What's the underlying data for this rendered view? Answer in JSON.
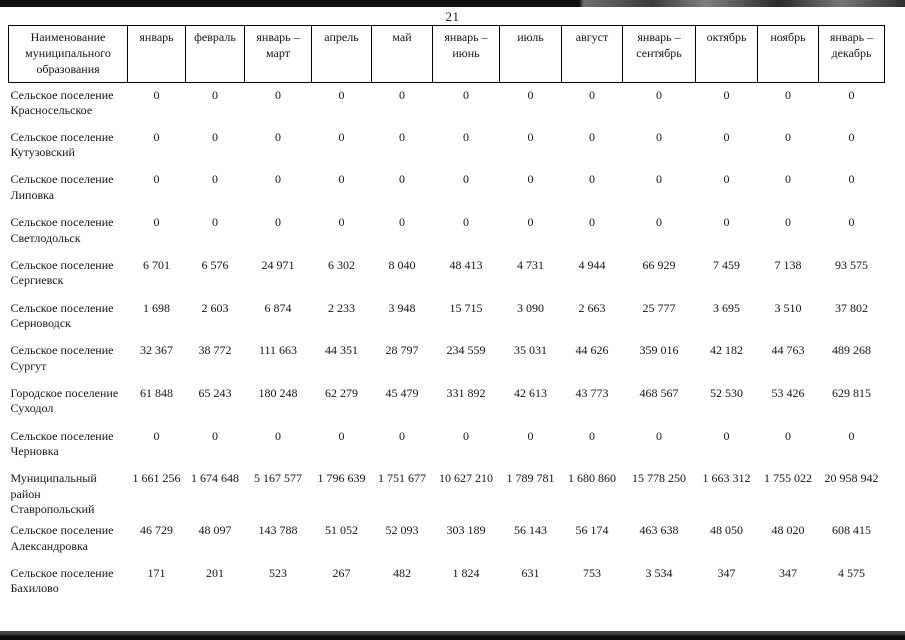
{
  "page": {
    "number": "21"
  },
  "table": {
    "name_header": "Наименование муниципального образования",
    "columns": [
      "январь",
      "февраль",
      "январь – март",
      "апрель",
      "май",
      "январь – июнь",
      "июль",
      "август",
      "январь – сентябрь",
      "октябрь",
      "ноябрь",
      "январь – декабрь"
    ],
    "rows": [
      {
        "name": "Сельское поселение Красносельское",
        "values": [
          "0",
          "0",
          "0",
          "0",
          "0",
          "0",
          "0",
          "0",
          "0",
          "0",
          "0",
          "0"
        ]
      },
      {
        "name": "Сельское поселение Кутузовский",
        "values": [
          "0",
          "0",
          "0",
          "0",
          "0",
          "0",
          "0",
          "0",
          "0",
          "0",
          "0",
          "0"
        ]
      },
      {
        "name": "Сельское поселение Липовка",
        "values": [
          "0",
          "0",
          "0",
          "0",
          "0",
          "0",
          "0",
          "0",
          "0",
          "0",
          "0",
          "0"
        ]
      },
      {
        "name": "Сельское поселение Светлодольск",
        "values": [
          "0",
          "0",
          "0",
          "0",
          "0",
          "0",
          "0",
          "0",
          "0",
          "0",
          "0",
          "0"
        ]
      },
      {
        "name": "Сельское поселение Сергиевск",
        "values": [
          "6 701",
          "6 576",
          "24 971",
          "6 302",
          "8 040",
          "48 413",
          "4 731",
          "4 944",
          "66 929",
          "7 459",
          "7 138",
          "93 575"
        ]
      },
      {
        "name": "Сельское поселение Серноводск",
        "values": [
          "1 698",
          "2 603",
          "6 874",
          "2 233",
          "3 948",
          "15 715",
          "3 090",
          "2 663",
          "25 777",
          "3 695",
          "3 510",
          "37 802"
        ]
      },
      {
        "name": "Сельское поселение Сургут",
        "values": [
          "32 367",
          "38 772",
          "111 663",
          "44 351",
          "28 797",
          "234 559",
          "35 031",
          "44 626",
          "359 016",
          "42 182",
          "44 763",
          "489 268"
        ]
      },
      {
        "name": "Городское поселение Суходол",
        "values": [
          "61 848",
          "65 243",
          "180 248",
          "62 279",
          "45 479",
          "331 892",
          "42 613",
          "43 773",
          "468 567",
          "52 530",
          "53 426",
          "629 815"
        ]
      },
      {
        "name": "Сельское поселение Черновка",
        "values": [
          "0",
          "0",
          "0",
          "0",
          "0",
          "0",
          "0",
          "0",
          "0",
          "0",
          "0",
          "0"
        ]
      },
      {
        "name": "Муниципальный район Ставропольский",
        "values": [
          "1 661 256",
          "1 674 648",
          "5 167 577",
          "1 796 639",
          "1 751 677",
          "10 627 210",
          "1 789 781",
          "1 680 860",
          "15 778 250",
          "1 663 312",
          "1 755 022",
          "20 958 942"
        ]
      },
      {
        "name": "Сельское поселение Александровка",
        "values": [
          "46 729",
          "48 097",
          "143 788",
          "51 052",
          "52 093",
          "303 189",
          "56 143",
          "56 174",
          "463 638",
          "48 050",
          "48 020",
          "608 415"
        ]
      },
      {
        "name": "Сельское поселение Бахилово",
        "values": [
          "171",
          "201",
          "523",
          "267",
          "482",
          "1 824",
          "631",
          "753",
          "3 534",
          "347",
          "347",
          "4 575"
        ]
      }
    ]
  }
}
